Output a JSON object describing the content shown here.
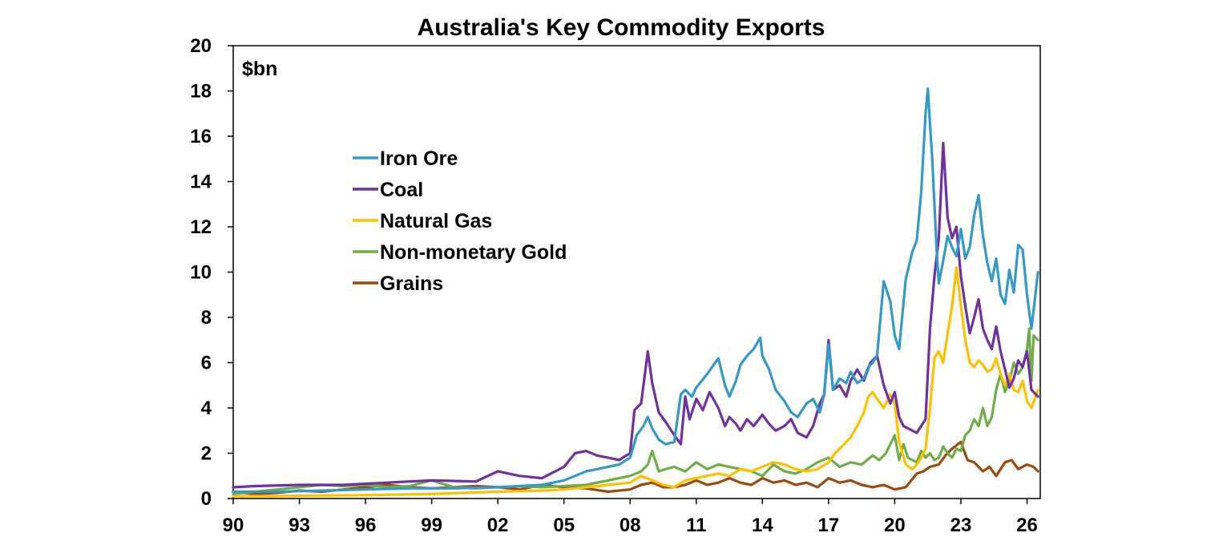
{
  "chart_data": {
    "type": "line",
    "title": "Australia's Key Commodity Exports",
    "unit_label": "$bn",
    "xlabel": "",
    "ylabel": "",
    "xlim": [
      1990.0,
      2026.6
    ],
    "ylim": [
      0,
      20
    ],
    "x_ticks": [
      1990,
      1993,
      1996,
      1999,
      2002,
      2005,
      2008,
      2011,
      2014,
      2017,
      2020,
      2023,
      2026
    ],
    "x_tick_labels": [
      "90",
      "93",
      "96",
      "99",
      "02",
      "05",
      "08",
      "11",
      "14",
      "17",
      "20",
      "23",
      "26"
    ],
    "y_ticks": [
      0,
      2,
      4,
      6,
      8,
      10,
      12,
      14,
      16,
      18,
      20
    ],
    "y_tick_labels": [
      "0",
      "2",
      "4",
      "6",
      "8",
      "10",
      "12",
      "14",
      "16",
      "18",
      "20"
    ],
    "grid": false,
    "legend_position": "upper-left inside plot",
    "series": [
      {
        "name": "Iron Ore",
        "color": "#3399cc",
        "x": [
          1990,
          1992,
          1994,
          1996,
          1998,
          2000,
          2002,
          2003,
          2004,
          2005,
          2005.5,
          2006,
          2006.5,
          2007,
          2007.5,
          2008,
          2008.3,
          2008.6,
          2008.8,
          2009,
          2009.3,
          2009.6,
          2010,
          2010.3,
          2010.5,
          2010.8,
          2011,
          2011.5,
          2012,
          2012.3,
          2012.5,
          2012.8,
          2013,
          2013.3,
          2013.6,
          2013.9,
          2014,
          2014.3,
          2014.6,
          2015,
          2015.3,
          2015.6,
          2016,
          2016.3,
          2016.6,
          2016.8,
          2017,
          2017.2,
          2017.5,
          2017.8,
          2018,
          2018.3,
          2018.6,
          2018.8,
          2019,
          2019.2,
          2019.5,
          2019.8,
          2020,
          2020.2,
          2020.5,
          2020.8,
          2021,
          2021.2,
          2021.4,
          2021.5,
          2021.7,
          2021.9,
          2022,
          2022.2,
          2022.4,
          2022.6,
          2022.8,
          2023,
          2023.2,
          2023.4,
          2023.6,
          2023.8,
          2024,
          2024.2,
          2024.4,
          2024.6,
          2024.8,
          2025,
          2025.2,
          2025.4,
          2025.6,
          2025.8,
          2026,
          2026.2,
          2026.5
        ],
        "values": [
          0.3,
          0.3,
          0.35,
          0.4,
          0.45,
          0.45,
          0.5,
          0.55,
          0.6,
          0.8,
          1.0,
          1.2,
          1.3,
          1.4,
          1.5,
          1.8,
          2.8,
          3.2,
          3.6,
          3.1,
          2.6,
          2.4,
          2.5,
          4.6,
          4.8,
          4.5,
          4.9,
          5.5,
          6.2,
          5.0,
          4.5,
          5.2,
          5.9,
          6.3,
          6.6,
          7.1,
          6.3,
          5.7,
          4.8,
          4.3,
          3.8,
          3.6,
          4.2,
          4.4,
          3.8,
          4.6,
          6.8,
          4.8,
          5.3,
          5.1,
          5.6,
          5.1,
          5.3,
          5.8,
          6.0,
          6.3,
          9.6,
          8.7,
          7.2,
          6.6,
          9.7,
          10.9,
          11.4,
          13.5,
          17.0,
          18.1,
          15.0,
          11.0,
          9.5,
          10.5,
          11.6,
          11.1,
          10.7,
          11.9,
          10.6,
          11.1,
          12.5,
          13.4,
          11.6,
          10.4,
          9.6,
          10.6,
          9.0,
          8.6,
          10.1,
          9.1,
          11.2,
          11.0,
          9.0,
          7.5,
          10.0
        ]
      },
      {
        "name": "Coal",
        "color": "#7030a0",
        "x": [
          1990,
          1991,
          1993,
          1995,
          1997,
          1999,
          2001,
          2002,
          2003,
          2004,
          2005,
          2005.5,
          2006,
          2006.5,
          2007,
          2007.5,
          2008,
          2008.2,
          2008.5,
          2008.8,
          2009,
          2009.3,
          2009.6,
          2010,
          2010.3,
          2010.5,
          2010.7,
          2011,
          2011.3,
          2011.6,
          2012,
          2012.3,
          2012.5,
          2012.8,
          2013,
          2013.3,
          2013.6,
          2014,
          2014.3,
          2014.6,
          2015,
          2015.3,
          2015.6,
          2016,
          2016.3,
          2016.6,
          2016.8,
          2017,
          2017.2,
          2017.5,
          2017.8,
          2018,
          2018.3,
          2018.6,
          2018.9,
          2019.2,
          2019.5,
          2019.8,
          2020,
          2020.2,
          2020.4,
          2020.6,
          2020.8,
          2021,
          2021.2,
          2021.4,
          2021.6,
          2021.8,
          2022,
          2022.2,
          2022.4,
          2022.6,
          2022.8,
          2023,
          2023.2,
          2023.4,
          2023.6,
          2023.8,
          2024,
          2024.2,
          2024.4,
          2024.6,
          2024.8,
          2025,
          2025.2,
          2025.4,
          2025.6,
          2025.8,
          2026,
          2026.2,
          2026.5
        ],
        "values": [
          0.5,
          0.55,
          0.6,
          0.6,
          0.7,
          0.8,
          0.75,
          1.2,
          1.0,
          0.9,
          1.4,
          2.0,
          2.1,
          1.9,
          1.8,
          1.7,
          2.0,
          3.9,
          4.2,
          6.5,
          5.1,
          3.8,
          3.4,
          2.8,
          2.4,
          4.5,
          3.5,
          4.4,
          3.9,
          4.7,
          4.0,
          3.2,
          3.6,
          3.3,
          3.0,
          3.5,
          3.2,
          3.7,
          3.3,
          3.0,
          3.2,
          3.5,
          2.9,
          2.7,
          3.2,
          4.2,
          4.6,
          7.0,
          4.8,
          5.0,
          4.5,
          5.2,
          5.7,
          5.2,
          6.0,
          6.3,
          5.0,
          4.2,
          4.7,
          3.6,
          3.2,
          3.1,
          3.0,
          2.9,
          3.2,
          3.5,
          7.5,
          9.8,
          11.5,
          15.7,
          12.4,
          11.5,
          12.0,
          9.8,
          8.5,
          7.3,
          8.0,
          8.8,
          7.5,
          7.0,
          6.6,
          7.6,
          6.5,
          5.7,
          4.9,
          5.3,
          6.1,
          5.8,
          6.5,
          4.8,
          4.5
        ]
      },
      {
        "name": "Natural Gas",
        "color": "#ffc000",
        "x": [
          1990,
          1993,
          1996,
          1999,
          2002,
          2004,
          2005,
          2006,
          2007,
          2008,
          2008.5,
          2009,
          2009.5,
          2010,
          2010.5,
          2011,
          2011.5,
          2012,
          2012.5,
          2013,
          2013.5,
          2014,
          2014.5,
          2015,
          2015.5,
          2016,
          2016.5,
          2017,
          2017.3,
          2017.6,
          2018,
          2018.3,
          2018.6,
          2018.8,
          2019,
          2019.2,
          2019.5,
          2019.8,
          2020,
          2020.2,
          2020.5,
          2020.8,
          2021,
          2021.2,
          2021.4,
          2021.6,
          2021.8,
          2022,
          2022.2,
          2022.4,
          2022.6,
          2022.8,
          2023,
          2023.2,
          2023.4,
          2023.6,
          2023.8,
          2024,
          2024.2,
          2024.4,
          2024.6,
          2024.8,
          2025,
          2025.2,
          2025.4,
          2025.6,
          2025.8,
          2026,
          2026.2,
          2026.5
        ],
        "values": [
          0.1,
          0.12,
          0.15,
          0.2,
          0.3,
          0.35,
          0.4,
          0.5,
          0.6,
          0.7,
          1.0,
          0.8,
          0.6,
          0.5,
          0.8,
          0.9,
          1.0,
          1.1,
          1.0,
          1.3,
          1.2,
          1.4,
          1.6,
          1.5,
          1.3,
          1.2,
          1.3,
          1.6,
          2.0,
          2.3,
          2.7,
          3.2,
          3.8,
          4.5,
          4.7,
          4.4,
          4.0,
          4.6,
          4.2,
          2.5,
          1.5,
          1.3,
          1.5,
          1.8,
          2.2,
          4.0,
          6.2,
          6.5,
          6.0,
          7.3,
          8.5,
          10.2,
          8.5,
          7.0,
          6.0,
          5.8,
          6.1,
          5.9,
          5.6,
          5.7,
          6.2,
          5.5,
          5.0,
          5.5,
          4.8,
          4.7,
          5.2,
          4.3,
          4.0,
          4.8
        ]
      },
      {
        "name": "Non-monetary Gold",
        "color": "#70ad47",
        "x": [
          1990,
          1991,
          1992,
          1993,
          1994,
          1995,
          1996,
          1997,
          1998,
          1999,
          2000,
          2001,
          2002,
          2003,
          2004,
          2005,
          2006,
          2007,
          2008,
          2008.5,
          2008.8,
          2009,
          2009.3,
          2009.6,
          2010,
          2010.5,
          2011,
          2011.5,
          2012,
          2012.5,
          2013,
          2013.5,
          2014,
          2014.5,
          2015,
          2015.5,
          2016,
          2016.5,
          2017,
          2017.5,
          2018,
          2018.5,
          2019,
          2019.3,
          2019.6,
          2020,
          2020.2,
          2020.4,
          2020.6,
          2020.8,
          2021,
          2021.2,
          2021.4,
          2021.6,
          2021.8,
          2022,
          2022.2,
          2022.4,
          2022.6,
          2022.8,
          2023,
          2023.2,
          2023.4,
          2023.6,
          2023.8,
          2024,
          2024.2,
          2024.4,
          2024.6,
          2024.8,
          2025,
          2025.2,
          2025.4,
          2025.6,
          2025.8,
          2026,
          2026.1,
          2026.2,
          2026.3,
          2026.5
        ],
        "values": [
          0.2,
          0.3,
          0.4,
          0.5,
          0.6,
          0.55,
          0.6,
          0.5,
          0.55,
          0.8,
          0.5,
          0.45,
          0.5,
          0.55,
          0.5,
          0.55,
          0.6,
          0.8,
          1.0,
          1.2,
          1.5,
          2.1,
          1.2,
          1.3,
          1.4,
          1.2,
          1.6,
          1.3,
          1.5,
          1.4,
          1.3,
          1.2,
          1.0,
          1.5,
          1.2,
          1.1,
          1.3,
          1.6,
          1.8,
          1.4,
          1.6,
          1.5,
          1.9,
          1.7,
          2.0,
          2.8,
          1.7,
          2.4,
          1.8,
          1.7,
          1.6,
          2.1,
          1.8,
          2.0,
          1.7,
          1.8,
          2.3,
          2.0,
          1.8,
          2.2,
          2.1,
          2.8,
          3.0,
          3.5,
          3.2,
          4.0,
          3.2,
          3.6,
          4.8,
          5.5,
          4.7,
          5.2,
          6.0,
          5.5,
          5.8,
          6.6,
          7.5,
          5.2,
          7.2,
          7.0
        ]
      },
      {
        "name": "Grains",
        "color": "#9c4a0e",
        "x": [
          1990,
          1991,
          1992,
          1993,
          1994,
          1995,
          1996,
          1997,
          1998,
          1999,
          2000,
          2001,
          2002,
          2003,
          2004,
          2005,
          2006,
          2007,
          2008,
          2008.5,
          2009,
          2009.5,
          2010,
          2010.5,
          2011,
          2011.5,
          2012,
          2012.5,
          2013,
          2013.5,
          2014,
          2014.5,
          2015,
          2015.5,
          2016,
          2016.5,
          2017,
          2017.5,
          2018,
          2018.5,
          2019,
          2019.5,
          2020,
          2020.5,
          2021,
          2021.3,
          2021.6,
          2022,
          2022.3,
          2022.6,
          2023,
          2023.3,
          2023.6,
          2024,
          2024.3,
          2024.6,
          2025,
          2025.3,
          2025.6,
          2026,
          2026.3,
          2026.5
        ],
        "values": [
          0.3,
          0.2,
          0.25,
          0.35,
          0.3,
          0.4,
          0.5,
          0.6,
          0.5,
          0.45,
          0.5,
          0.55,
          0.5,
          0.4,
          0.6,
          0.5,
          0.45,
          0.3,
          0.4,
          0.6,
          0.7,
          0.5,
          0.5,
          0.6,
          0.8,
          0.6,
          0.7,
          0.9,
          0.7,
          0.6,
          0.9,
          0.7,
          0.8,
          0.6,
          0.7,
          0.5,
          0.9,
          0.7,
          0.8,
          0.6,
          0.5,
          0.6,
          0.4,
          0.5,
          1.1,
          1.2,
          1.4,
          1.5,
          1.9,
          2.2,
          2.5,
          1.7,
          1.6,
          1.2,
          1.4,
          1.0,
          1.6,
          1.7,
          1.3,
          1.5,
          1.4,
          1.2
        ]
      }
    ]
  }
}
